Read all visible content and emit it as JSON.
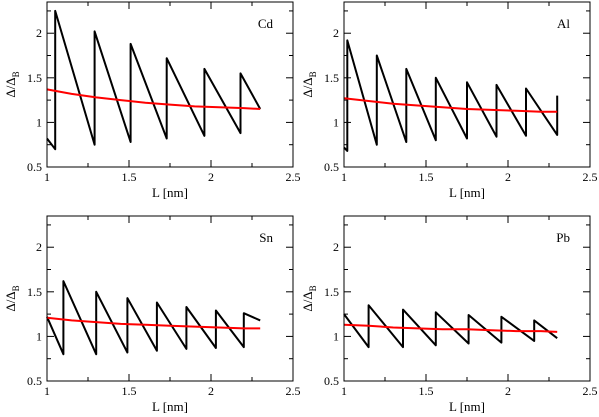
{
  "colors": {
    "sawtooth": "#000000",
    "smooth": "#ff0000"
  },
  "chart_data": [
    {
      "type": "line",
      "panel_label": "Cd",
      "xlabel": "L [nm]",
      "ylabel_main": "Δ/Δ",
      "ylabel_sub": "B",
      "xlim": [
        1,
        2.5
      ],
      "ylim": [
        0.5,
        2.35
      ],
      "xticks": [
        "1",
        "1.5",
        "2",
        "2.5"
      ],
      "yticks": [
        "0.5",
        "1",
        "1.5",
        "2"
      ],
      "series": [
        {
          "color": "sawtooth",
          "x": [
            1.0,
            1.05,
            1.05,
            1.29,
            1.29,
            1.51,
            1.51,
            1.73,
            1.73,
            1.96,
            1.96,
            2.18,
            2.18,
            2.3
          ],
          "y": [
            0.82,
            0.7,
            2.25,
            0.75,
            2.02,
            0.78,
            1.88,
            0.82,
            1.72,
            0.85,
            1.6,
            0.88,
            1.55,
            1.15
          ]
        },
        {
          "color": "smooth",
          "x": [
            1.0,
            1.15,
            1.3,
            1.45,
            1.6,
            1.75,
            1.9,
            2.05,
            2.2,
            2.3
          ],
          "y": [
            1.37,
            1.32,
            1.28,
            1.25,
            1.22,
            1.2,
            1.18,
            1.17,
            1.16,
            1.15
          ]
        }
      ]
    },
    {
      "type": "line",
      "panel_label": "Al",
      "xlabel": "L [nm]",
      "ylabel_main": "Δ/Δ",
      "ylabel_sub": "B",
      "xlim": [
        1,
        2.5
      ],
      "ylim": [
        0.5,
        2.35
      ],
      "xticks": [
        "1",
        "1.5",
        "2",
        "2.5"
      ],
      "yticks": [
        "0.5",
        "1",
        "1.5",
        "2"
      ],
      "series": [
        {
          "color": "sawtooth",
          "x": [
            1.0,
            1.02,
            1.02,
            1.2,
            1.2,
            1.38,
            1.38,
            1.56,
            1.56,
            1.75,
            1.75,
            1.93,
            1.93,
            2.11,
            2.11,
            2.3,
            2.3
          ],
          "y": [
            0.72,
            0.68,
            1.92,
            0.75,
            1.75,
            0.78,
            1.6,
            0.8,
            1.5,
            0.82,
            1.45,
            0.84,
            1.42,
            0.85,
            1.38,
            0.86,
            1.3
          ]
        },
        {
          "color": "smooth",
          "x": [
            1.0,
            1.15,
            1.3,
            1.45,
            1.6,
            1.75,
            1.9,
            2.05,
            2.2,
            2.3
          ],
          "y": [
            1.27,
            1.24,
            1.21,
            1.19,
            1.17,
            1.15,
            1.14,
            1.13,
            1.12,
            1.12
          ]
        }
      ]
    },
    {
      "type": "line",
      "panel_label": "Sn",
      "xlabel": "L [nm]",
      "ylabel_main": "Δ/Δ",
      "ylabel_sub": "B",
      "xlim": [
        1,
        2.5
      ],
      "ylim": [
        0.5,
        2.35
      ],
      "xticks": [
        "1",
        "1.5",
        "2",
        "2.5"
      ],
      "yticks": [
        "0.5",
        "1",
        "1.5",
        "2"
      ],
      "series": [
        {
          "color": "sawtooth",
          "x": [
            1.0,
            1.1,
            1.1,
            1.3,
            1.3,
            1.49,
            1.49,
            1.67,
            1.67,
            1.85,
            1.85,
            2.03,
            2.03,
            2.2,
            2.2,
            2.3
          ],
          "y": [
            1.22,
            0.8,
            1.62,
            0.8,
            1.5,
            0.82,
            1.43,
            0.84,
            1.38,
            0.86,
            1.33,
            0.87,
            1.29,
            0.88,
            1.26,
            1.18
          ]
        },
        {
          "color": "smooth",
          "x": [
            1.0,
            1.15,
            1.3,
            1.45,
            1.6,
            1.75,
            1.9,
            2.05,
            2.2,
            2.3
          ],
          "y": [
            1.21,
            1.18,
            1.16,
            1.14,
            1.13,
            1.12,
            1.11,
            1.1,
            1.09,
            1.09
          ]
        }
      ]
    },
    {
      "type": "line",
      "panel_label": "Pb",
      "xlabel": "L [nm]",
      "ylabel_main": "Δ/Δ",
      "ylabel_sub": "B",
      "xlim": [
        1,
        2.5
      ],
      "ylim": [
        0.5,
        2.35
      ],
      "xticks": [
        "1",
        "1.5",
        "2",
        "2.5"
      ],
      "yticks": [
        "0.5",
        "1",
        "1.5",
        "2"
      ],
      "series": [
        {
          "color": "sawtooth",
          "x": [
            1.0,
            1.15,
            1.15,
            1.36,
            1.36,
            1.56,
            1.56,
            1.76,
            1.76,
            1.96,
            1.96,
            2.16,
            2.16,
            2.3
          ],
          "y": [
            1.25,
            0.88,
            1.35,
            0.88,
            1.3,
            0.9,
            1.27,
            0.92,
            1.24,
            0.93,
            1.22,
            0.95,
            1.18,
            0.98
          ]
        },
        {
          "color": "smooth",
          "x": [
            1.0,
            1.15,
            1.3,
            1.45,
            1.6,
            1.75,
            1.9,
            2.05,
            2.2,
            2.3
          ],
          "y": [
            1.13,
            1.12,
            1.1,
            1.09,
            1.08,
            1.08,
            1.07,
            1.06,
            1.06,
            1.05
          ]
        }
      ]
    }
  ]
}
